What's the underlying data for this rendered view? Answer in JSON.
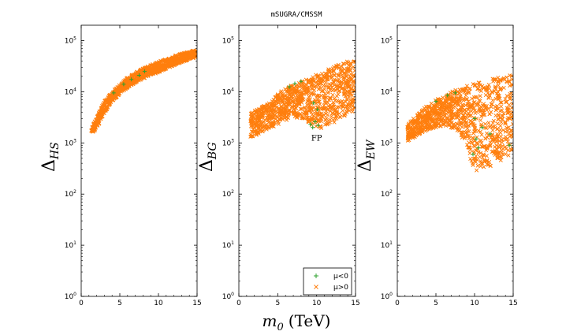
{
  "figure": {
    "suptitle": "mSUGRA/CMSSM",
    "xlabel_main": "m",
    "xlabel_sub": "0",
    "xlabel_unit": "(TeV)",
    "legend": {
      "location": "lower-right of middle panel",
      "entries": [
        {
          "label": "μ<0",
          "marker": "+",
          "color": "#2ca02c"
        },
        {
          "label": "μ>0",
          "marker": "x",
          "color": "#ff7f0e"
        }
      ]
    },
    "colors": {
      "mu_neg": "#2ca02c",
      "mu_pos": "#ff7f0e"
    }
  },
  "chart_data": [
    {
      "type": "scatter",
      "panel": "left",
      "ylabel_main": "Δ",
      "ylabel_sub": "HS",
      "xlim": [
        0,
        15
      ],
      "ylim": [
        1,
        200000
      ],
      "yscale": "log",
      "xticks": [
        "0",
        "5",
        "10",
        "15"
      ],
      "yticks": [
        {
          "base": "10",
          "exp": "0"
        },
        {
          "base": "10",
          "exp": "1"
        },
        {
          "base": "10",
          "exp": "2"
        },
        {
          "base": "10",
          "exp": "3"
        },
        {
          "base": "10",
          "exp": "4"
        },
        {
          "base": "10",
          "exp": "5"
        }
      ],
      "bands": [
        {
          "x": 1.3,
          "ylo": 1500,
          "yhi": 1900
        },
        {
          "x": 2.0,
          "ylo": 1900,
          "yhi": 3200
        },
        {
          "x": 3.0,
          "ylo": 3800,
          "yhi": 6500
        },
        {
          "x": 4.0,
          "ylo": 6500,
          "yhi": 10000
        },
        {
          "x": 5.0,
          "ylo": 9000,
          "yhi": 14000
        },
        {
          "x": 6.0,
          "ylo": 12000,
          "yhi": 19000
        },
        {
          "x": 7.0,
          "ylo": 15000,
          "yhi": 24000
        },
        {
          "x": 8.0,
          "ylo": 18000,
          "yhi": 29000
        },
        {
          "x": 9.0,
          "ylo": 21000,
          "yhi": 34000
        },
        {
          "x": 10.0,
          "ylo": 24000,
          "yhi": 39000
        },
        {
          "x": 11.0,
          "ylo": 28000,
          "yhi": 44000
        },
        {
          "x": 12.0,
          "ylo": 33000,
          "yhi": 50000
        },
        {
          "x": 13.0,
          "ylo": 38000,
          "yhi": 56000
        },
        {
          "x": 14.0,
          "ylo": 43000,
          "yhi": 62000
        },
        {
          "x": 15.0,
          "ylo": 47000,
          "yhi": 66000
        }
      ],
      "green_points": [
        [
          4.2,
          9500
        ],
        [
          5.5,
          14000
        ],
        [
          6.5,
          17500
        ],
        [
          7.5,
          21000
        ],
        [
          8.2,
          25000
        ]
      ],
      "annotations": []
    },
    {
      "type": "scatter",
      "panel": "middle",
      "ylabel_main": "Δ",
      "ylabel_sub": "BG",
      "xlim": [
        0,
        15
      ],
      "ylim": [
        1,
        200000
      ],
      "yscale": "log",
      "xticks": [
        "0",
        "5",
        "10",
        "15"
      ],
      "yticks": [
        {
          "base": "10",
          "exp": "0"
        },
        {
          "base": "10",
          "exp": "1"
        },
        {
          "base": "10",
          "exp": "2"
        },
        {
          "base": "10",
          "exp": "3"
        },
        {
          "base": "10",
          "exp": "4"
        },
        {
          "base": "10",
          "exp": "5"
        }
      ],
      "bands": [
        {
          "x": 1.5,
          "ylo": 1100,
          "yhi": 4500
        },
        {
          "x": 2.5,
          "ylo": 1500,
          "yhi": 4700
        },
        {
          "x": 3.5,
          "ylo": 1800,
          "yhi": 5500
        },
        {
          "x": 4.5,
          "ylo": 2100,
          "yhi": 7500
        },
        {
          "x": 5.5,
          "ylo": 2500,
          "yhi": 10500
        },
        {
          "x": 6.5,
          "ylo": 2900,
          "yhi": 13000
        },
        {
          "x": 7.5,
          "ylo": 3100,
          "yhi": 15000
        },
        {
          "x": 8.5,
          "ylo": 3000,
          "yhi": 17000
        },
        {
          "x": 9.3,
          "ylo": 2200,
          "yhi": 19000
        },
        {
          "x": 10.0,
          "ylo": 1800,
          "yhi": 22000
        },
        {
          "x": 11.0,
          "ylo": 2000,
          "yhi": 26000
        },
        {
          "x": 12.0,
          "ylo": 2400,
          "yhi": 30000
        },
        {
          "x": 13.0,
          "ylo": 2800,
          "yhi": 35000
        },
        {
          "x": 14.0,
          "ylo": 3500,
          "yhi": 40000
        },
        {
          "x": 15.0,
          "ylo": 4500,
          "yhi": 45000
        }
      ],
      "green_points": [
        [
          9.2,
          2300
        ],
        [
          9.5,
          2000
        ],
        [
          9.8,
          2600
        ],
        [
          10.2,
          2200
        ],
        [
          6.5,
          12500
        ],
        [
          7.2,
          14500
        ],
        [
          8.0,
          16000
        ],
        [
          9.6,
          6000
        ],
        [
          10.1,
          4500
        ]
      ],
      "annotations": [
        {
          "text": "FP",
          "x": 10.0,
          "y": 1100
        }
      ]
    },
    {
      "type": "scatter",
      "panel": "right",
      "ylabel_main": "Δ",
      "ylabel_sub": "EW",
      "xlim": [
        0,
        15
      ],
      "ylim": [
        1,
        200000
      ],
      "yscale": "log",
      "xticks": [
        "0",
        "5",
        "10",
        "15"
      ],
      "yticks": [
        {
          "base": "10",
          "exp": "0"
        },
        {
          "base": "10",
          "exp": "1"
        },
        {
          "base": "10",
          "exp": "2"
        },
        {
          "base": "10",
          "exp": "3"
        },
        {
          "base": "10",
          "exp": "4"
        },
        {
          "base": "10",
          "exp": "5"
        }
      ],
      "bands": [
        {
          "x": 1.3,
          "ylo": 1100,
          "yhi": 2200
        },
        {
          "x": 2.0,
          "ylo": 1200,
          "yhi": 3000
        },
        {
          "x": 3.0,
          "ylo": 1500,
          "yhi": 4200
        },
        {
          "x": 4.0,
          "ylo": 1800,
          "yhi": 5500
        },
        {
          "x": 5.0,
          "ylo": 2000,
          "yhi": 7000
        },
        {
          "x": 6.0,
          "ylo": 2100,
          "yhi": 8500
        },
        {
          "x": 7.0,
          "ylo": 2000,
          "yhi": 10000
        },
        {
          "x": 8.0,
          "ylo": 1600,
          "yhi": 11500
        },
        {
          "x": 9.0,
          "ylo": 900,
          "yhi": 13000
        },
        {
          "x": 9.7,
          "ylo": 350,
          "yhi": 14000
        },
        {
          "x": 10.0,
          "ylo": 280,
          "yhi": 14500
        },
        {
          "x": 11.0,
          "ylo": 300,
          "yhi": 16000
        },
        {
          "x": 12.0,
          "ylo": 350,
          "yhi": 17500
        },
        {
          "x": 13.0,
          "ylo": 420,
          "yhi": 19000
        },
        {
          "x": 14.0,
          "ylo": 500,
          "yhi": 20500
        },
        {
          "x": 15.0,
          "ylo": 600,
          "yhi": 22000
        }
      ],
      "green_points": [
        [
          5.0,
          6500
        ],
        [
          6.5,
          8500
        ],
        [
          7.5,
          9500
        ],
        [
          9.8,
          600
        ],
        [
          10.2,
          1200
        ],
        [
          10.5,
          800
        ],
        [
          11.0,
          2000
        ],
        [
          12.0,
          1500
        ],
        [
          14.5,
          900
        ],
        [
          10.0,
          3000
        ]
      ],
      "annotations": []
    }
  ]
}
